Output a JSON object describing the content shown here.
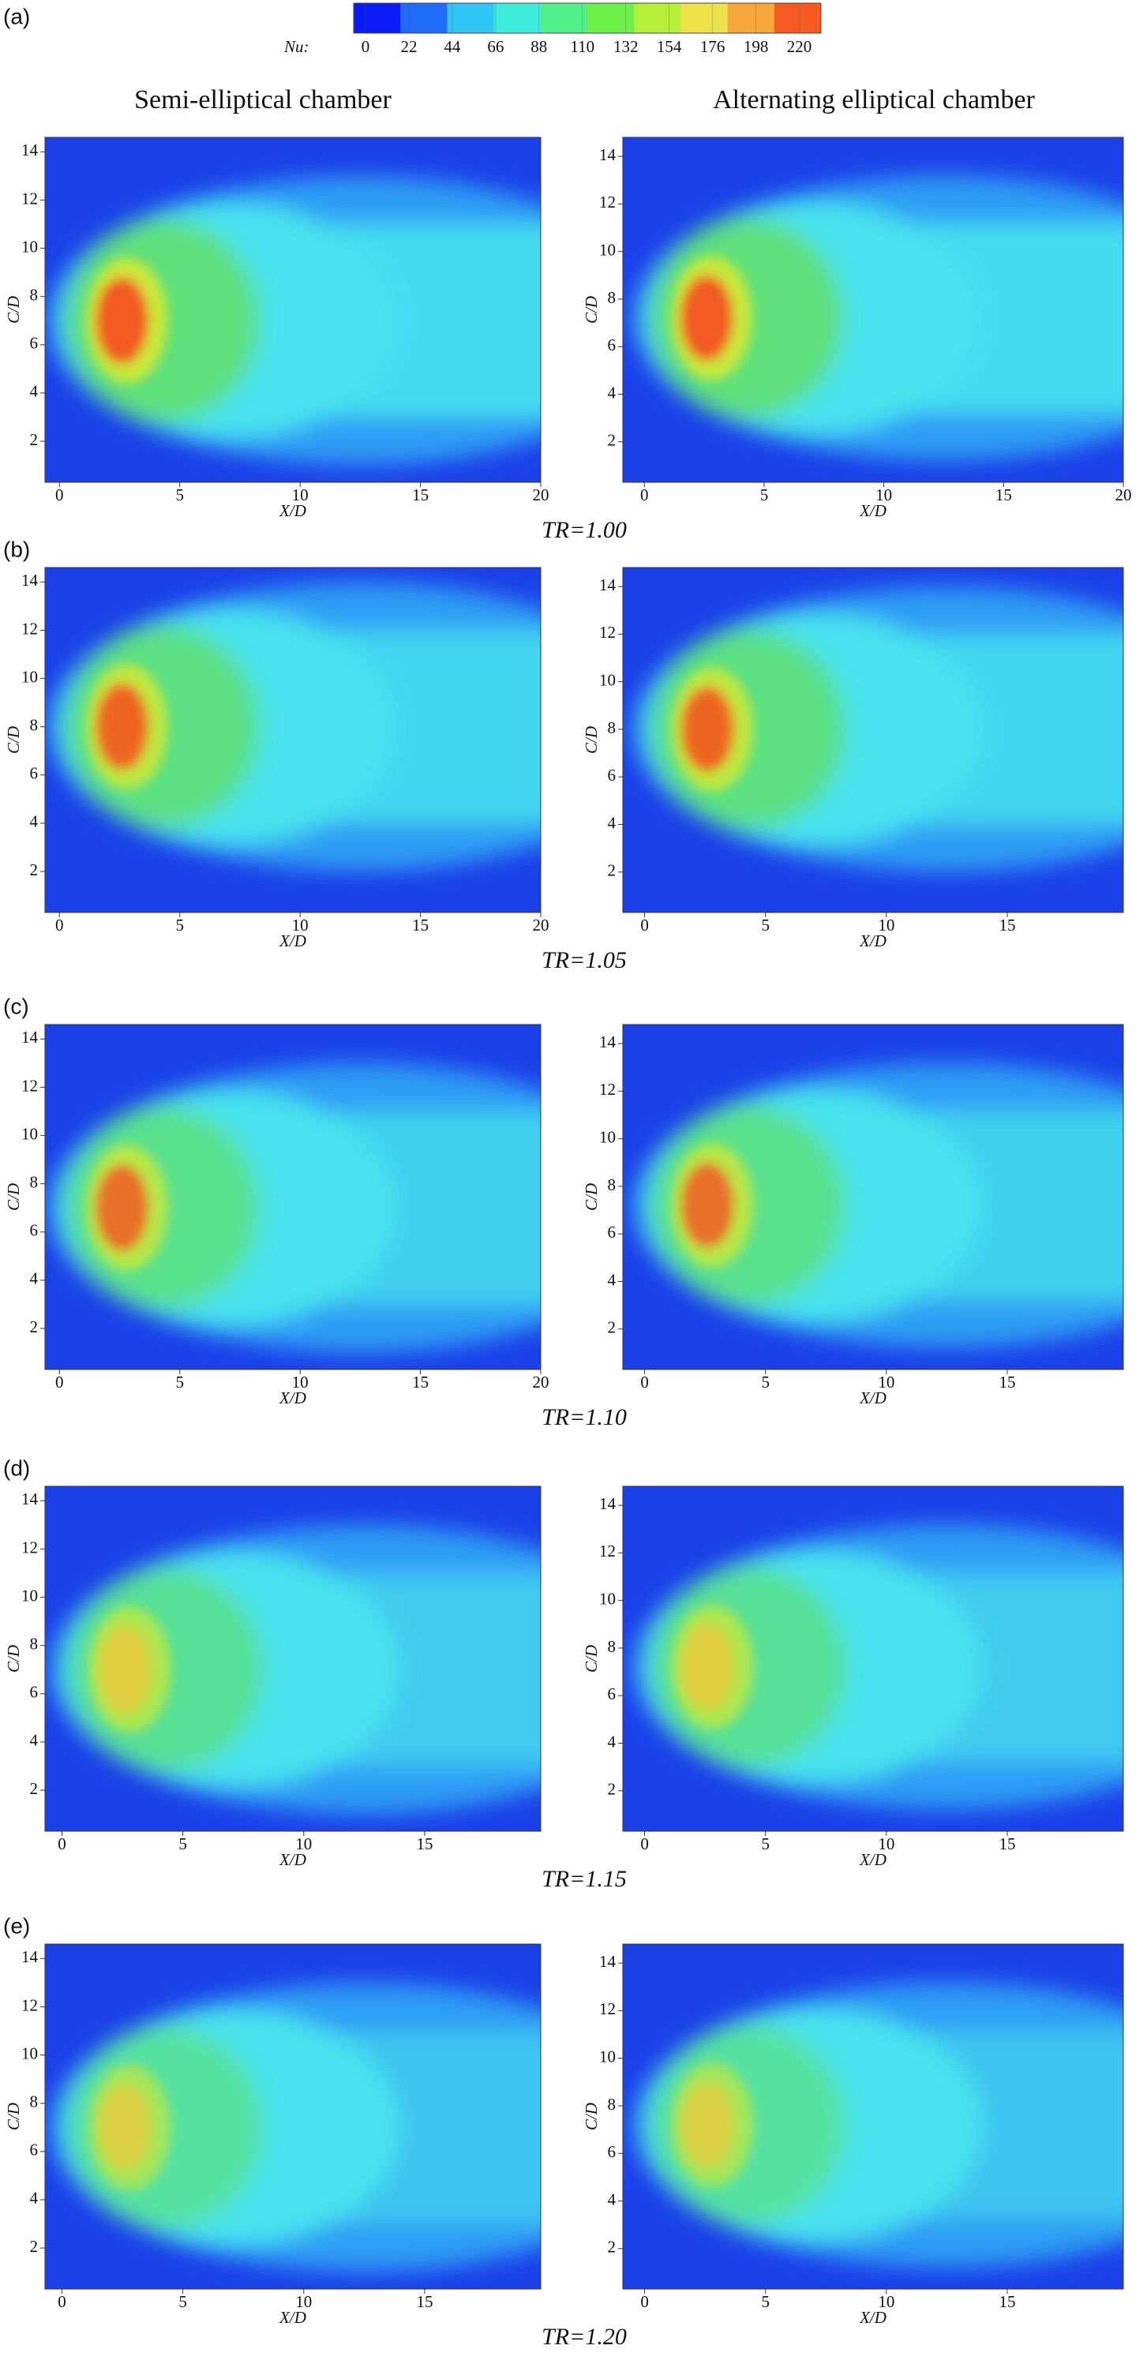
{
  "colorbar": {
    "label": "Nu:",
    "lim": [
      -6,
      231
    ],
    "ticks": [
      0,
      22,
      44,
      66,
      88,
      110,
      132,
      154,
      176,
      198,
      220
    ],
    "colors": [
      "#0a1cf5",
      "#1e6cf8",
      "#2fc4f4",
      "#3eeedd",
      "#52f08a",
      "#6cf04a",
      "#b6ee3c",
      "#eee24a",
      "#f7a83c",
      "#f65a20"
    ]
  },
  "columns": [
    "Semi-elliptical chamber",
    "Alternating elliptical chamber"
  ],
  "panels": [
    {
      "label": "(a)",
      "caption": "TR=1.00",
      "plots": [
        {
          "type": "contour",
          "xlabel": "X/D",
          "ylabel": "C/D",
          "xlim": [
            -0.6,
            20
          ],
          "ylim": [
            0.3,
            14.6
          ],
          "xticks": [
            0,
            5,
            10,
            15,
            20
          ],
          "yticks": [
            2,
            4,
            6,
            8,
            10,
            12,
            14
          ]
        },
        {
          "type": "contour",
          "xlabel": "X/D",
          "ylabel": "C/D",
          "xlim": [
            -0.9,
            20
          ],
          "ylim": [
            0.3,
            14.8
          ],
          "xticks": [
            0,
            5,
            10,
            15,
            20
          ],
          "yticks": [
            2,
            4,
            6,
            8,
            10,
            12,
            14
          ]
        }
      ]
    },
    {
      "label": "(b)",
      "caption": "TR=1.05",
      "plots": [
        {
          "type": "contour",
          "xlabel": "X/D",
          "ylabel": "C/D",
          "xlim": [
            -0.6,
            20
          ],
          "ylim": [
            0.3,
            14.6
          ],
          "xticks": [
            0,
            5,
            10,
            15,
            20
          ],
          "yticks": [
            2,
            4,
            6,
            8,
            10,
            12,
            14
          ]
        },
        {
          "type": "contour",
          "xlabel": "X/D",
          "ylabel": "C/D",
          "xlim": [
            -0.9,
            19.8
          ],
          "ylim": [
            0.3,
            14.8
          ],
          "xticks": [
            0,
            5,
            10,
            15
          ],
          "yticks": [
            2,
            4,
            6,
            8,
            10,
            12,
            14
          ]
        }
      ]
    },
    {
      "label": "(c)",
      "caption": "TR=1.10",
      "plots": [
        {
          "type": "contour",
          "xlabel": "X/D",
          "ylabel": "C/D",
          "xlim": [
            -0.6,
            20
          ],
          "ylim": [
            0.3,
            14.6
          ],
          "xticks": [
            0,
            5,
            10,
            15,
            20
          ],
          "yticks": [
            2,
            4,
            6,
            8,
            10,
            12,
            14
          ]
        },
        {
          "type": "contour",
          "xlabel": "X/D",
          "ylabel": "C/D",
          "xlim": [
            -0.9,
            19.8
          ],
          "ylim": [
            0.3,
            14.8
          ],
          "xticks": [
            0,
            5,
            10,
            15
          ],
          "yticks": [
            2,
            4,
            6,
            8,
            10,
            12,
            14
          ]
        }
      ]
    },
    {
      "label": "(d)",
      "caption": "TR=1.15",
      "plots": [
        {
          "type": "contour",
          "xlabel": "X/D",
          "ylabel": "C/D",
          "xlim": [
            -0.7,
            19.8
          ],
          "ylim": [
            0.3,
            14.6
          ],
          "xticks": [
            0,
            5,
            10,
            15
          ],
          "yticks": [
            2,
            4,
            6,
            8,
            10,
            12,
            14
          ]
        },
        {
          "type": "contour",
          "xlabel": "X/D",
          "ylabel": "C/D",
          "xlim": [
            -0.9,
            19.8
          ],
          "ylim": [
            0.3,
            14.8
          ],
          "xticks": [
            0,
            5,
            10,
            15
          ],
          "yticks": [
            2,
            4,
            6,
            8,
            10,
            12,
            14
          ]
        }
      ]
    },
    {
      "label": "(e)",
      "caption": "TR=1.20",
      "plots": [
        {
          "type": "contour",
          "xlabel": "X/D",
          "ylabel": "C/D",
          "xlim": [
            -0.7,
            19.8
          ],
          "ylim": [
            0.3,
            14.6
          ],
          "xticks": [
            0,
            5,
            10,
            15
          ],
          "yticks": [
            2,
            4,
            6,
            8,
            10,
            12,
            14
          ]
        },
        {
          "type": "contour",
          "xlabel": "X/D",
          "ylabel": "C/D",
          "xlim": [
            -0.9,
            19.8
          ],
          "ylim": [
            0.3,
            14.8
          ],
          "xticks": [
            0,
            5,
            10,
            15
          ],
          "yticks": [
            2,
            4,
            6,
            8,
            10,
            12,
            14
          ]
        }
      ]
    }
  ]
}
